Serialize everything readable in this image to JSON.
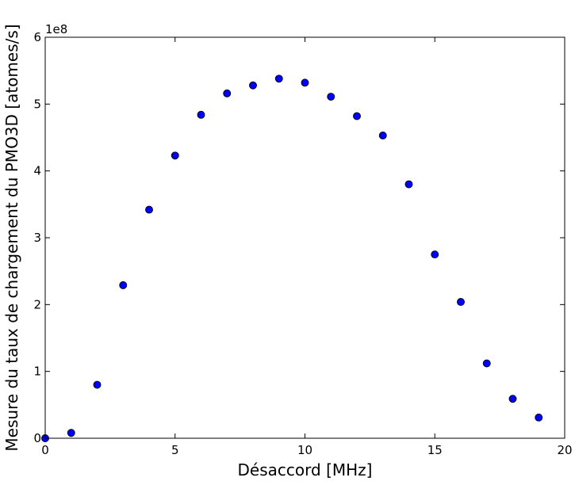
{
  "chart_data": {
    "type": "scatter",
    "xlabel": "Désaccord [MHz]",
    "ylabel": "Mesure du taux de chargement du PMO3D [atomes/s]",
    "y_offset_label": "1e8",
    "xlim": [
      0,
      20
    ],
    "ylim": [
      0,
      6
    ],
    "x_ticks": [
      0,
      5,
      10,
      15,
      20
    ],
    "y_ticks": [
      0,
      1,
      2,
      3,
      4,
      5,
      6
    ],
    "grid": false,
    "marker_color": "#0000ff",
    "x": [
      0,
      1,
      2,
      3,
      4,
      5,
      6,
      7,
      8,
      9,
      10,
      11,
      12,
      13,
      14,
      15,
      16,
      17,
      18,
      19
    ],
    "y": [
      0.0,
      0.08,
      0.8,
      2.29,
      3.42,
      4.23,
      4.84,
      5.16,
      5.28,
      5.38,
      5.32,
      5.11,
      4.82,
      4.53,
      3.8,
      2.75,
      2.04,
      1.12,
      0.59,
      0.31
    ]
  }
}
